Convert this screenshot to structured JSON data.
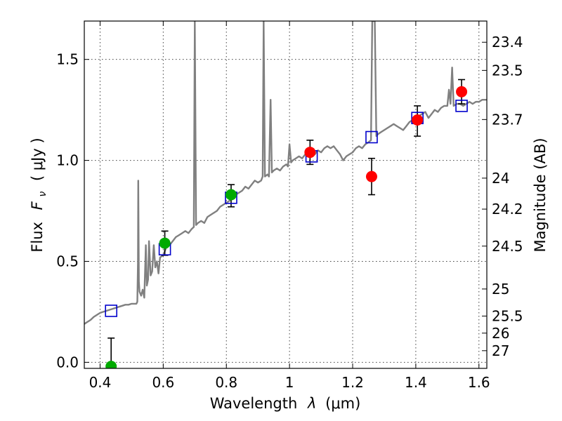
{
  "chart_data": {
    "type": "scatter",
    "xlabel_text": "Wavelength",
    "xlabel_symbol": "λ",
    "xlabel_unit": "(μm)",
    "ylabel_text": "Flux",
    "ylabel_symbol": "F",
    "ylabel_subscript": "ν",
    "ylabel_unit": "( μJy )",
    "y2label": "Magnitude (AB)",
    "xlim": [
      0.35,
      1.625
    ],
    "ylim": [
      -0.03,
      1.69
    ],
    "grid": true,
    "x_ticks": [
      {
        "value": 0.4,
        "label": "0.4"
      },
      {
        "value": 0.6,
        "label": "0.6"
      },
      {
        "value": 0.8,
        "label": "0.8"
      },
      {
        "value": 1.0,
        "label": "1"
      },
      {
        "value": 1.2,
        "label": "1.2"
      },
      {
        "value": 1.4,
        "label": "1.4"
      },
      {
        "value": 1.6,
        "label": "1.6"
      }
    ],
    "y_ticks": [
      {
        "value": 0.0,
        "label": "0.0"
      },
      {
        "value": 0.5,
        "label": "0.5"
      },
      {
        "value": 1.0,
        "label": "1.0"
      },
      {
        "value": 1.5,
        "label": "1.5"
      }
    ],
    "magnitude_ticks": [
      {
        "mag": 23.4,
        "label": "23.4"
      },
      {
        "mag": 23.5,
        "label": "23.5"
      },
      {
        "mag": 23.7,
        "label": "23.7"
      },
      {
        "mag": 24.0,
        "label": "24"
      },
      {
        "mag": 24.2,
        "label": "24.2"
      },
      {
        "mag": 24.5,
        "label": "24.5"
      },
      {
        "mag": 25.0,
        "label": "25"
      },
      {
        "mag": 25.5,
        "label": "25.5"
      },
      {
        "mag": 26.0,
        "label": "26"
      },
      {
        "mag": 27.0,
        "label": "27"
      }
    ],
    "colors": {
      "template": "#808080",
      "model": "#0000cc",
      "observed_red": "#ff0000",
      "observed_green": "#00aa00",
      "errorbar": "#000000"
    },
    "template_spectrum": [
      [
        0.35,
        0.19
      ],
      [
        0.36,
        0.2
      ],
      [
        0.37,
        0.21
      ],
      [
        0.38,
        0.225
      ],
      [
        0.39,
        0.235
      ],
      [
        0.4,
        0.245
      ],
      [
        0.41,
        0.25
      ],
      [
        0.42,
        0.255
      ],
      [
        0.43,
        0.26
      ],
      [
        0.44,
        0.265
      ],
      [
        0.45,
        0.27
      ],
      [
        0.46,
        0.275
      ],
      [
        0.47,
        0.28
      ],
      [
        0.48,
        0.285
      ],
      [
        0.49,
        0.285
      ],
      [
        0.5,
        0.29
      ],
      [
        0.51,
        0.29
      ],
      [
        0.515,
        0.29
      ],
      [
        0.518,
        0.3
      ],
      [
        0.52,
        0.5
      ],
      [
        0.521,
        0.9
      ],
      [
        0.523,
        0.4
      ],
      [
        0.525,
        0.35
      ],
      [
        0.53,
        0.33
      ],
      [
        0.535,
        0.36
      ],
      [
        0.54,
        0.32
      ],
      [
        0.545,
        0.58
      ],
      [
        0.548,
        0.38
      ],
      [
        0.552,
        0.41
      ],
      [
        0.555,
        0.6
      ],
      [
        0.56,
        0.43
      ],
      [
        0.565,
        0.45
      ],
      [
        0.57,
        0.58
      ],
      [
        0.575,
        0.47
      ],
      [
        0.58,
        0.5
      ],
      [
        0.585,
        0.44
      ],
      [
        0.59,
        0.52
      ],
      [
        0.6,
        0.53
      ],
      [
        0.61,
        0.57
      ],
      [
        0.62,
        0.58
      ],
      [
        0.63,
        0.6
      ],
      [
        0.64,
        0.62
      ],
      [
        0.65,
        0.63
      ],
      [
        0.66,
        0.64
      ],
      [
        0.67,
        0.65
      ],
      [
        0.68,
        0.64
      ],
      [
        0.69,
        0.66
      ],
      [
        0.697,
        0.67
      ],
      [
        0.7,
        1.69
      ],
      [
        0.704,
        0.68
      ],
      [
        0.71,
        0.69
      ],
      [
        0.72,
        0.7
      ],
      [
        0.73,
        0.69
      ],
      [
        0.74,
        0.72
      ],
      [
        0.75,
        0.73
      ],
      [
        0.76,
        0.74
      ],
      [
        0.77,
        0.75
      ],
      [
        0.78,
        0.77
      ],
      [
        0.79,
        0.78
      ],
      [
        0.8,
        0.79
      ],
      [
        0.81,
        0.8
      ],
      [
        0.82,
        0.82
      ],
      [
        0.83,
        0.83
      ],
      [
        0.84,
        0.84
      ],
      [
        0.85,
        0.85
      ],
      [
        0.86,
        0.87
      ],
      [
        0.87,
        0.86
      ],
      [
        0.88,
        0.88
      ],
      [
        0.89,
        0.9
      ],
      [
        0.9,
        0.89
      ],
      [
        0.91,
        0.9
      ],
      [
        0.915,
        0.92
      ],
      [
        0.918,
        1.69
      ],
      [
        0.922,
        0.92
      ],
      [
        0.93,
        0.93
      ],
      [
        0.935,
        0.92
      ],
      [
        0.94,
        1.3
      ],
      [
        0.944,
        0.94
      ],
      [
        0.95,
        0.95
      ],
      [
        0.96,
        0.96
      ],
      [
        0.97,
        0.95
      ],
      [
        0.98,
        0.97
      ],
      [
        0.99,
        0.98
      ],
      [
        0.995,
        0.97
      ],
      [
        1.0,
        1.08
      ],
      [
        1.005,
        0.99
      ],
      [
        1.01,
        1.0
      ],
      [
        1.02,
        1.01
      ],
      [
        1.03,
        1.02
      ],
      [
        1.04,
        1.01
      ],
      [
        1.05,
        1.03
      ],
      [
        1.06,
        1.02
      ],
      [
        1.07,
        1.04
      ],
      [
        1.08,
        1.03
      ],
      [
        1.09,
        1.05
      ],
      [
        1.1,
        1.04
      ],
      [
        1.11,
        1.06
      ],
      [
        1.12,
        1.07
      ],
      [
        1.13,
        1.06
      ],
      [
        1.14,
        1.07
      ],
      [
        1.15,
        1.05
      ],
      [
        1.16,
        1.03
      ],
      [
        1.17,
        1.0
      ],
      [
        1.18,
        1.02
      ],
      [
        1.19,
        1.03
      ],
      [
        1.2,
        1.04
      ],
      [
        1.21,
        1.06
      ],
      [
        1.22,
        1.07
      ],
      [
        1.23,
        1.06
      ],
      [
        1.24,
        1.08
      ],
      [
        1.25,
        1.09
      ],
      [
        1.258,
        1.1
      ],
      [
        1.262,
        1.69
      ],
      [
        1.27,
        1.69
      ],
      [
        1.275,
        1.12
      ],
      [
        1.28,
        1.13
      ],
      [
        1.29,
        1.14
      ],
      [
        1.3,
        1.15
      ],
      [
        1.31,
        1.16
      ],
      [
        1.32,
        1.17
      ],
      [
        1.33,
        1.18
      ],
      [
        1.34,
        1.17
      ],
      [
        1.35,
        1.16
      ],
      [
        1.36,
        1.15
      ],
      [
        1.37,
        1.17
      ],
      [
        1.38,
        1.19
      ],
      [
        1.39,
        1.2
      ],
      [
        1.4,
        1.21
      ],
      [
        1.41,
        1.22
      ],
      [
        1.42,
        1.23
      ],
      [
        1.43,
        1.24
      ],
      [
        1.44,
        1.21
      ],
      [
        1.45,
        1.23
      ],
      [
        1.46,
        1.25
      ],
      [
        1.47,
        1.24
      ],
      [
        1.48,
        1.26
      ],
      [
        1.49,
        1.27
      ],
      [
        1.5,
        1.27
      ],
      [
        1.505,
        1.35
      ],
      [
        1.51,
        1.28
      ],
      [
        1.515,
        1.46
      ],
      [
        1.52,
        1.27
      ],
      [
        1.53,
        1.28
      ],
      [
        1.54,
        1.28
      ],
      [
        1.55,
        1.27
      ],
      [
        1.56,
        1.28
      ],
      [
        1.57,
        1.29
      ],
      [
        1.58,
        1.28
      ],
      [
        1.59,
        1.29
      ],
      [
        1.6,
        1.29
      ],
      [
        1.61,
        1.3
      ],
      [
        1.625,
        1.3
      ]
    ],
    "model_points": [
      {
        "x": 0.435,
        "y": 0.255
      },
      {
        "x": 0.605,
        "y": 0.56
      },
      {
        "x": 0.815,
        "y": 0.815
      },
      {
        "x": 1.07,
        "y": 1.02
      },
      {
        "x": 1.26,
        "y": 1.115
      },
      {
        "x": 1.405,
        "y": 1.21
      },
      {
        "x": 1.545,
        "y": 1.27
      }
    ],
    "observed_points": [
      {
        "x": 0.435,
        "y": -0.02,
        "yerr_low": 0.0,
        "yerr_high": 0.14,
        "color": "green"
      },
      {
        "x": 0.605,
        "y": 0.59,
        "yerr_low": 0.06,
        "yerr_high": 0.06,
        "color": "green"
      },
      {
        "x": 0.815,
        "y": 0.83,
        "yerr_low": 0.06,
        "yerr_high": 0.05,
        "color": "green"
      },
      {
        "x": 1.065,
        "y": 1.04,
        "yerr_low": 0.06,
        "yerr_high": 0.06,
        "color": "red"
      },
      {
        "x": 1.26,
        "y": 0.92,
        "yerr_low": 0.09,
        "yerr_high": 0.09,
        "color": "red"
      },
      {
        "x": 1.405,
        "y": 1.2,
        "yerr_low": 0.08,
        "yerr_high": 0.07,
        "color": "red"
      },
      {
        "x": 1.545,
        "y": 1.34,
        "yerr_low": 0.06,
        "yerr_high": 0.06,
        "color": "red"
      }
    ]
  }
}
